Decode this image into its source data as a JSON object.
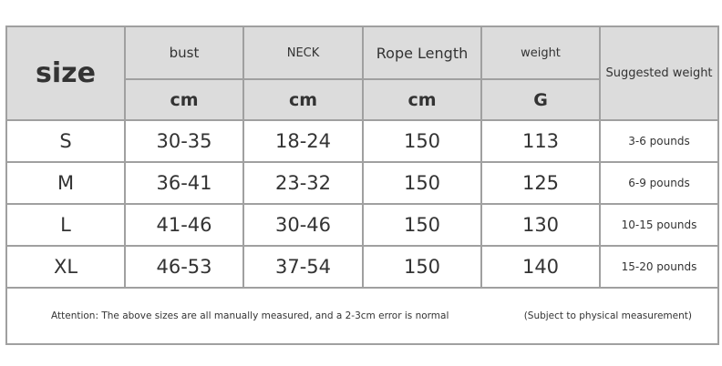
{
  "header": {
    "size": "size",
    "columns": [
      {
        "label": "bust",
        "unit": "cm"
      },
      {
        "label": "NECK",
        "unit": "cm"
      },
      {
        "label": "Rope Length",
        "unit": "cm"
      },
      {
        "label": "weight",
        "unit": "G"
      }
    ],
    "suggested": "Suggested weight"
  },
  "rows": [
    {
      "size": "S",
      "bust": "30-35",
      "neck": "18-24",
      "rope": "150",
      "weight": "113",
      "suggested": "3-6 pounds"
    },
    {
      "size": "M",
      "bust": "36-41",
      "neck": "23-32",
      "rope": "150",
      "weight": "125",
      "suggested": "6-9 pounds"
    },
    {
      "size": "L",
      "bust": "41-46",
      "neck": "30-46",
      "rope": "150",
      "weight": "130",
      "suggested": "10-15 pounds"
    },
    {
      "size": "XL",
      "bust": "46-53",
      "neck": "37-54",
      "rope": "150",
      "weight": "140",
      "suggested": "15-20 pounds"
    }
  ],
  "footer": {
    "note": "Attention: The above sizes are all manually measured, and a 2-3cm error is normal",
    "subject": "(Subject to physical measurement)"
  }
}
